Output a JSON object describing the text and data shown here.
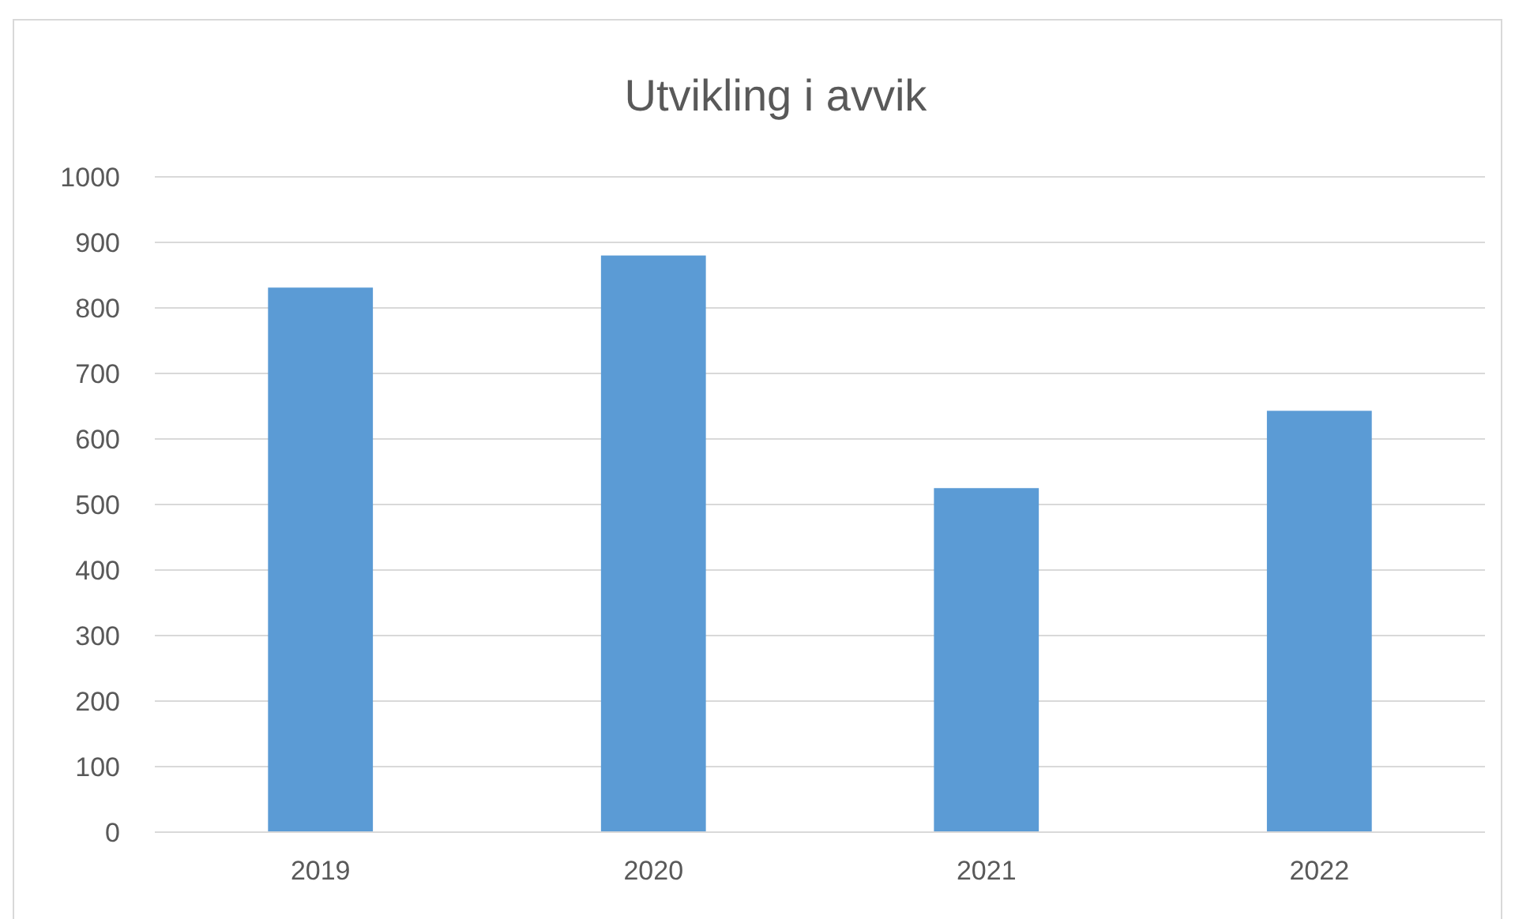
{
  "chart_data": {
    "type": "bar",
    "title": "Utvikling i avvik",
    "categories": [
      "2019",
      "2020",
      "2021",
      "2022"
    ],
    "values": [
      831,
      880,
      525,
      643
    ],
    "color": "#5b9bd5",
    "ylim": [
      0,
      1000
    ],
    "yticks": [
      0,
      100,
      200,
      300,
      400,
      500,
      600,
      700,
      800,
      900,
      1000
    ],
    "grid": "y"
  }
}
